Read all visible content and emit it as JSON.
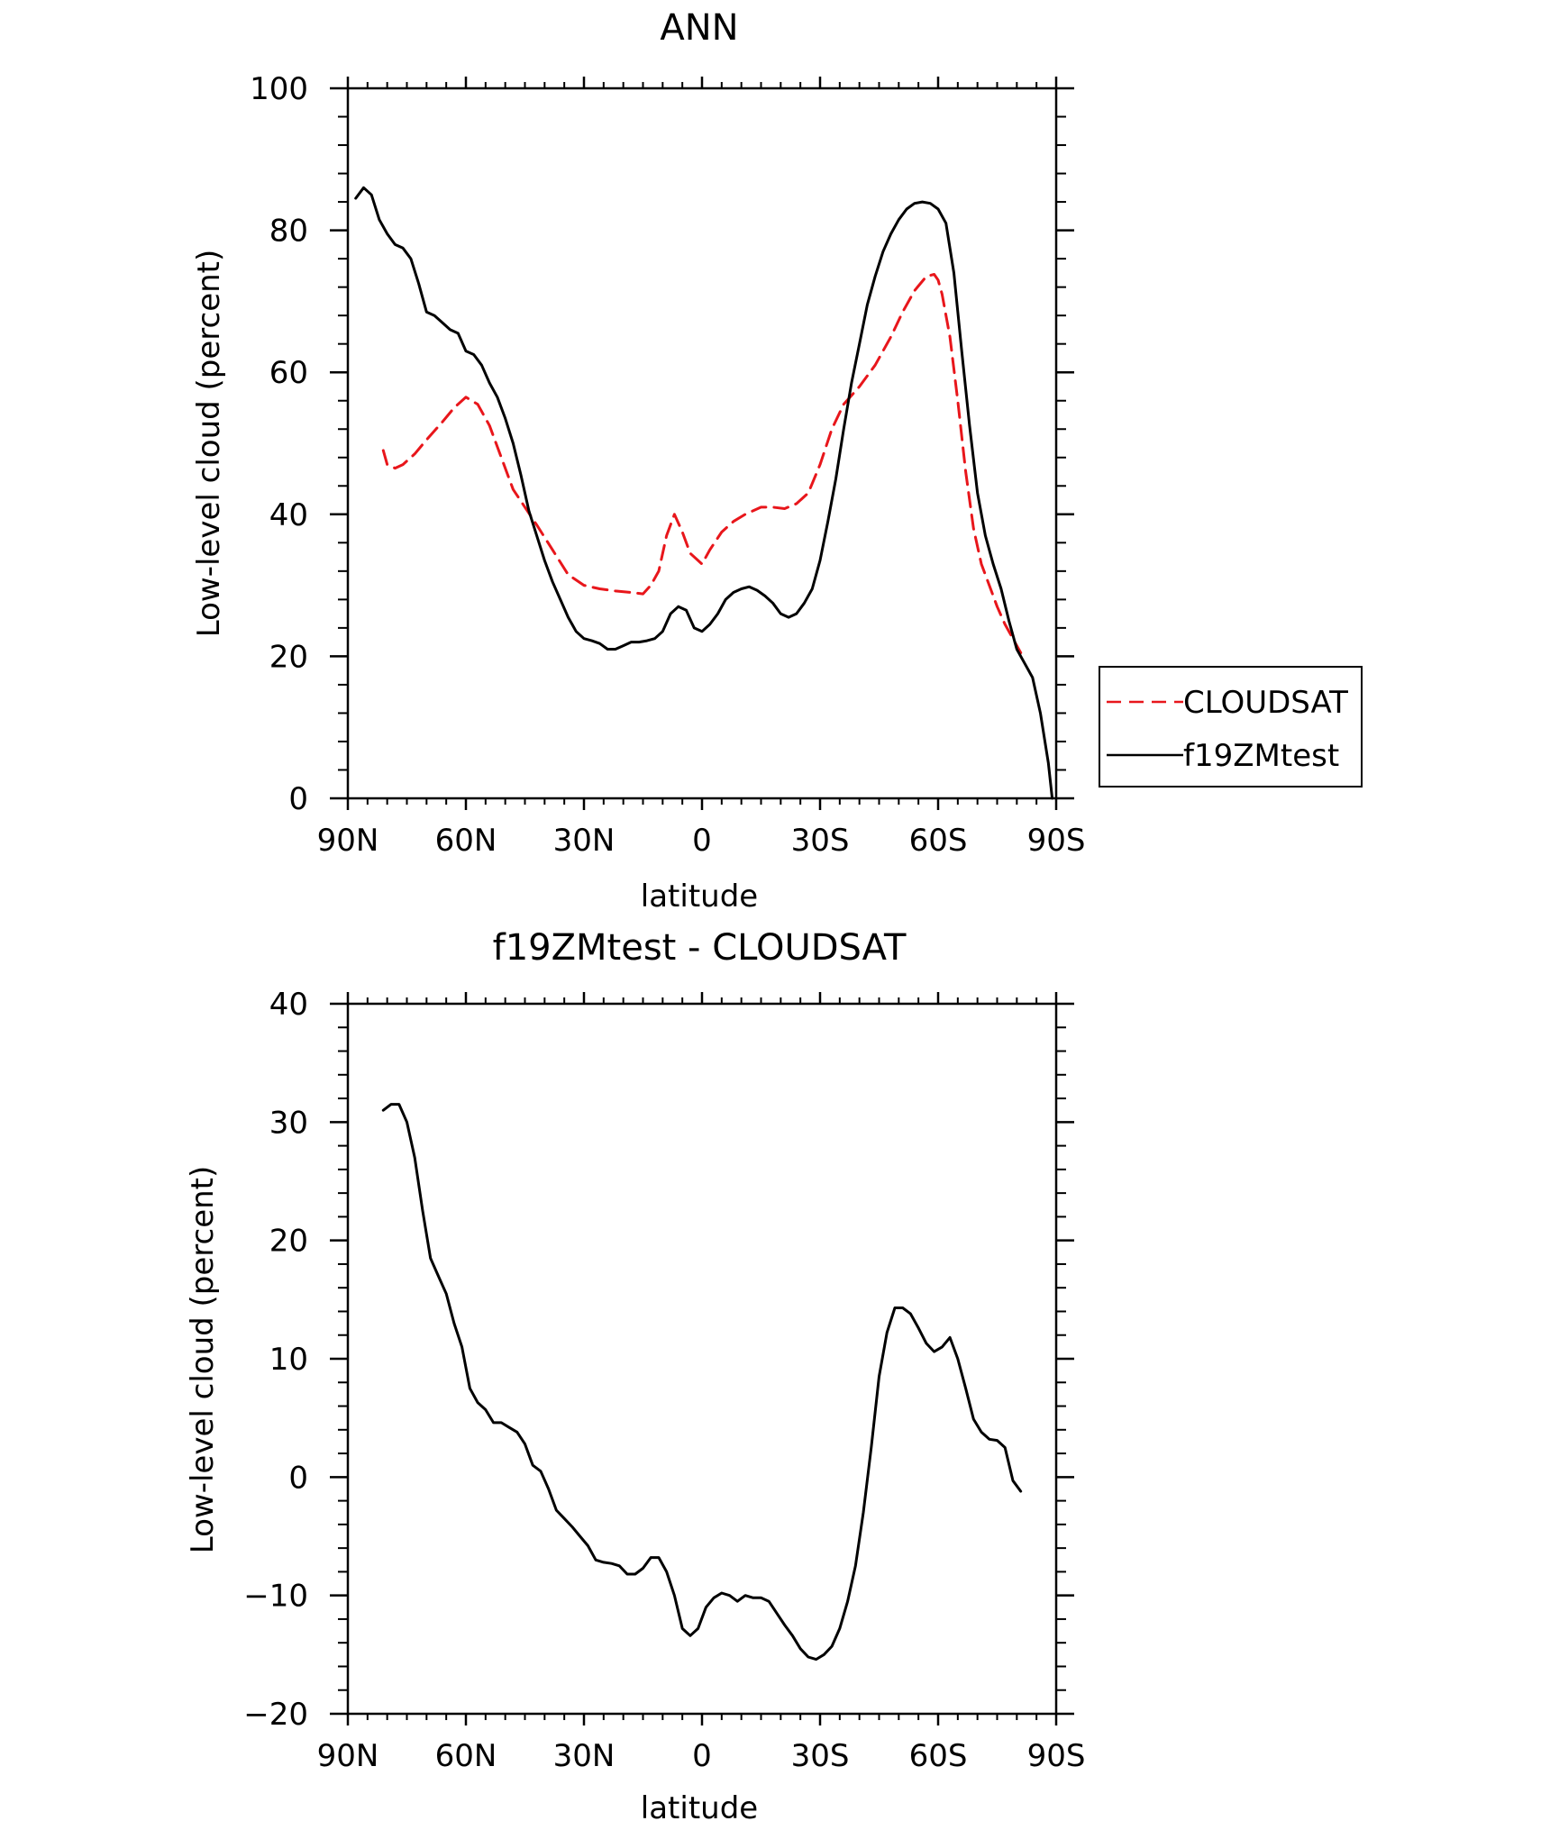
{
  "chart_data": [
    {
      "type": "line",
      "title": "ANN",
      "xlabel": "latitude",
      "ylabel": "Low-level cloud (percent)",
      "xlim": [
        90,
        -90
      ],
      "ylim": [
        0,
        100
      ],
      "x_ticks": [
        90,
        60,
        30,
        0,
        -30,
        -60,
        -90
      ],
      "x_tick_labels": [
        "90N",
        "60N",
        "30N",
        "0",
        "30S",
        "60S",
        "90S"
      ],
      "y_ticks": [
        0,
        20,
        40,
        60,
        80,
        100
      ],
      "y_tick_labels": [
        "0",
        "20",
        "40",
        "60",
        "80",
        "100"
      ],
      "grid": false,
      "legend_position": "right",
      "series": [
        {
          "name": "CLOUDSAT",
          "color": "#e8161b",
          "style": "dashed",
          "x": [
            81,
            80,
            78,
            76,
            73,
            70,
            66,
            63,
            60,
            57,
            54,
            51,
            48,
            45,
            42,
            38,
            34,
            30,
            26,
            22,
            18,
            15,
            13,
            11,
            9,
            7,
            5,
            3,
            1,
            0,
            -2,
            -5,
            -8,
            -11,
            -15,
            -18,
            -21,
            -24,
            -27,
            -30,
            -33,
            -36,
            -40,
            -44,
            -48,
            -51,
            -54,
            -57,
            -59,
            -60,
            -61,
            -63,
            -65,
            -67,
            -69,
            -71,
            -73,
            -75,
            -77,
            -79,
            -81
          ],
          "y": [
            49,
            47,
            46.5,
            47,
            48.5,
            50.5,
            53,
            55,
            56.5,
            55.5,
            52.5,
            48,
            43.5,
            41,
            38.5,
            35,
            31.5,
            30,
            29.5,
            29.2,
            29,
            28.8,
            30,
            32,
            37,
            40,
            37.5,
            34.5,
            33.5,
            33,
            35,
            37.5,
            39,
            40,
            41,
            41,
            40.8,
            41.5,
            43,
            47,
            52,
            55.5,
            58,
            61,
            65,
            68.5,
            71.5,
            73.5,
            73.8,
            73,
            71,
            65,
            56,
            46,
            38,
            33,
            30,
            27,
            24.5,
            22.5,
            20.5
          ]
        },
        {
          "name": "f19ZMtest",
          "color": "#000000",
          "style": "solid",
          "x": [
            88,
            86,
            84,
            82,
            80,
            78,
            76,
            74,
            72,
            70,
            68,
            66,
            64,
            62,
            60,
            58,
            56,
            54,
            52,
            50,
            48,
            46,
            44,
            42,
            40,
            38,
            36,
            34,
            32,
            30,
            28,
            26,
            24,
            22,
            20,
            18,
            16,
            14,
            12,
            10,
            8,
            6,
            4,
            2,
            0,
            -2,
            -4,
            -6,
            -8,
            -10,
            -12,
            -14,
            -16,
            -18,
            -20,
            -22,
            -24,
            -26,
            -28,
            -30,
            -32,
            -34,
            -36,
            -38,
            -40,
            -42,
            -44,
            -46,
            -48,
            -50,
            -52,
            -54,
            -56,
            -58,
            -60,
            -62,
            -64,
            -66,
            -68,
            -70,
            -72,
            -74,
            -76,
            -78,
            -80,
            -82,
            -84,
            -86,
            -88,
            -89
          ],
          "y": [
            84.5,
            86,
            85,
            81.5,
            79.5,
            78,
            77.5,
            76,
            72.5,
            68.5,
            68,
            67,
            66,
            65.5,
            63,
            62.5,
            61,
            58.5,
            56.5,
            53.5,
            50,
            45.5,
            40.5,
            37,
            33.5,
            30.5,
            28,
            25.5,
            23.5,
            22.5,
            22.2,
            21.8,
            21,
            21,
            21.5,
            22,
            22,
            22.2,
            22.5,
            23.5,
            26,
            27,
            26.5,
            24,
            23.5,
            24.5,
            26,
            28,
            29,
            29.5,
            29.8,
            29.3,
            28.5,
            27.5,
            26,
            25.5,
            26,
            27.5,
            29.5,
            33.5,
            39,
            45,
            52,
            58.5,
            64,
            69.5,
            73.5,
            77,
            79.5,
            81.5,
            83,
            83.8,
            84,
            83.8,
            83,
            81,
            74,
            63,
            52.5,
            43,
            37,
            33,
            29.5,
            25,
            21,
            19,
            17,
            12,
            5,
            0
          ]
        }
      ]
    },
    {
      "type": "line",
      "title": "f19ZMtest - CLOUDSAT",
      "xlabel": "latitude",
      "ylabel": "Low-level cloud (percent)",
      "xlim": [
        90,
        -90
      ],
      "ylim": [
        -20,
        40
      ],
      "x_ticks": [
        90,
        60,
        30,
        0,
        -30,
        -60,
        -90
      ],
      "x_tick_labels": [
        "90N",
        "60N",
        "30N",
        "0",
        "30S",
        "60S",
        "90S"
      ],
      "y_ticks": [
        -20,
        -10,
        0,
        10,
        20,
        30,
        40
      ],
      "y_tick_labels": [
        "−20",
        "−10",
        "0",
        "10",
        "20",
        "30",
        "40"
      ],
      "grid": false,
      "series": [
        {
          "color": "#000000",
          "style": "solid",
          "x": [
            81,
            79,
            77,
            75,
            73,
            71,
            69,
            67,
            65,
            63,
            61,
            59,
            57,
            55,
            53,
            51,
            49,
            47,
            45,
            43,
            41,
            39,
            37,
            35,
            33,
            31,
            29,
            27,
            25,
            23,
            21,
            19,
            17,
            15,
            13,
            11,
            9,
            7,
            5,
            3,
            1,
            -1,
            -3,
            -5,
            -7,
            -9,
            -11,
            -13,
            -15,
            -17,
            -19,
            -21,
            -23,
            -25,
            -27,
            -29,
            -31,
            -33,
            -35,
            -37,
            -39,
            -41,
            -43,
            -45,
            -47,
            -49,
            -51,
            -53,
            -55,
            -57,
            -59,
            -61,
            -63,
            -65,
            -67,
            -69,
            -71,
            -73,
            -75,
            -77,
            -79,
            -81
          ],
          "y": [
            31,
            31.5,
            31.5,
            30,
            27,
            22.5,
            18.5,
            17,
            15.5,
            13,
            11,
            7.5,
            6.3,
            5.7,
            4.6,
            4.6,
            4.2,
            3.8,
            2.8,
            1,
            0.5,
            -1,
            -2.8,
            -3.5,
            -4.2,
            -5,
            -5.8,
            -7,
            -7.2,
            -7.3,
            -7.5,
            -8.2,
            -8.2,
            -7.7,
            -6.8,
            -6.8,
            -8,
            -10,
            -12.8,
            -13.4,
            -12.8,
            -11,
            -10.2,
            -9.8,
            -10,
            -10.5,
            -10,
            -10.2,
            -10.2,
            -10.5,
            -11.5,
            -12.5,
            -13.4,
            -14.5,
            -15.2,
            -15.4,
            -15,
            -14.3,
            -12.8,
            -10.5,
            -7.5,
            -3,
            2.5,
            8.5,
            12.2,
            14.3,
            14.3,
            13.8,
            12.6,
            11.3,
            10.6,
            11,
            11.8,
            10,
            7.5,
            4.9,
            3.8,
            3.2,
            3.1,
            2.5,
            -0.3,
            -1.2
          ]
        }
      ]
    }
  ]
}
